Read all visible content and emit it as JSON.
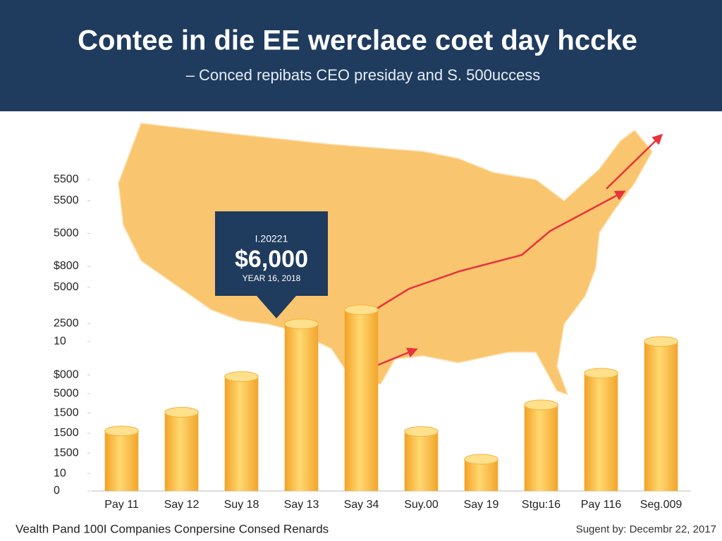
{
  "chart_data": {
    "type": "bar",
    "title": "Contee in die EE werclace coet day hccke",
    "subtitle": "– Conced repibats CEO presiday and S. 500uccess",
    "categories": [
      "Pay 11",
      "Say 12",
      "Suy 18",
      "Say 13",
      "Say 34",
      "Suy.00",
      "Say 19",
      "Stgu:16",
      "Pay 116",
      "Seg.009"
    ],
    "values": [
      1060,
      1390,
      2020,
      2950,
      3200,
      1050,
      560,
      1520,
      2080,
      2640
    ],
    "color": "#f7b13c",
    "ylim": [
      0,
      5500
    ],
    "yticks": [
      5500,
      {
        "value": 5130,
        "label": "5500"
      },
      {
        "value": 4550,
        "label": "5000"
      },
      {
        "value": 3970,
        "label": "$800"
      },
      {
        "value": 3600,
        "label": "5000"
      },
      {
        "value": 2960,
        "label": "2500"
      },
      {
        "value": 2640,
        "label": "10"
      },
      {
        "value": 2050,
        "label": "$000"
      },
      {
        "value": 1720,
        "label": "5000"
      },
      {
        "value": 1380,
        "label": "1500"
      },
      {
        "value": 1020,
        "label": "1500"
      },
      {
        "value": 670,
        "label": "1500"
      },
      {
        "value": 310,
        "label": "10"
      },
      0
    ],
    "callout": {
      "label": "I.20221",
      "value": "$6,000",
      "date": "YEAR 16, 2018"
    },
    "footer_left": "Vealth Pand 100I Companies Conpersine Consed Renards",
    "footer_right": "Sugent by: Decembr 22, 2017",
    "grid": false
  }
}
